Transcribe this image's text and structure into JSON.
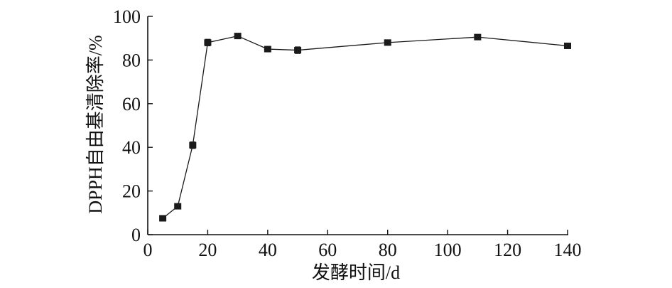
{
  "chart_data": {
    "type": "line",
    "title": "",
    "xlabel": "发酵时间/d",
    "ylabel": "DPPH自由基清除率/%",
    "xlim": [
      0,
      140
    ],
    "ylim": [
      0,
      100
    ],
    "xticks": [
      0,
      20,
      40,
      60,
      80,
      100,
      120,
      140
    ],
    "yticks": [
      0,
      20,
      40,
      60,
      80,
      100
    ],
    "grid": false,
    "legend": "none",
    "series": [
      {
        "marker": "square",
        "color": "#1a1a1a",
        "x": [
          5,
          10,
          15,
          20,
          30,
          40,
          50,
          80,
          110,
          140
        ],
        "y": [
          7.5,
          13,
          41,
          88,
          91,
          85,
          84.5,
          88,
          90.5,
          86.5
        ],
        "yerr": [
          1.2,
          1.2,
          1.5,
          1.5,
          1.2,
          1.2,
          1.5,
          1.2,
          1.2,
          1.2
        ]
      }
    ]
  }
}
